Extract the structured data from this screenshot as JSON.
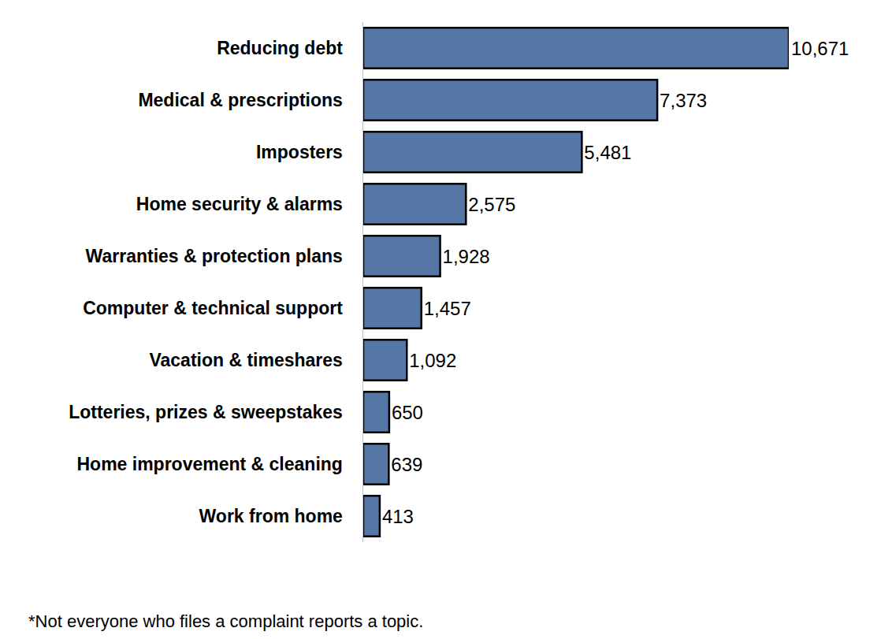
{
  "chart_data": {
    "type": "bar",
    "orientation": "horizontal",
    "categories": [
      "Reducing debt",
      "Medical & prescriptions",
      "Imposters",
      "Home security & alarms",
      "Warranties & protection plans",
      "Computer & technical support",
      "Vacation & timeshares",
      "Lotteries, prizes & sweepstakes",
      "Home improvement & cleaning",
      "Work from home"
    ],
    "values": [
      10671,
      7373,
      5481,
      2575,
      1928,
      1457,
      1092,
      650,
      639,
      413
    ],
    "value_labels": [
      "10,671",
      "7,373",
      "5,481",
      "2,575",
      "1,928",
      "1,457",
      "1,092",
      "650",
      "639",
      "413"
    ],
    "color": "#5577a5",
    "xlim": [
      0,
      10671
    ],
    "xticks": [],
    "grid": false,
    "data_labels": true,
    "tick_labels": "y",
    "annotations": [
      "*Not everyone who files a complaint reports a topic."
    ]
  }
}
